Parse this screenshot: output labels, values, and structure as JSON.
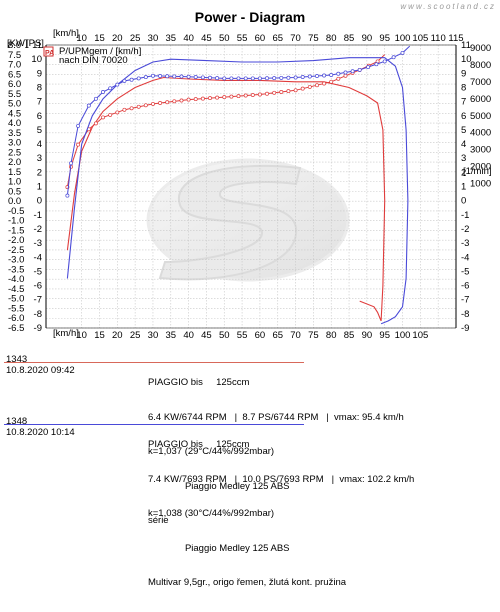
{
  "page": {
    "title": "Power - Diagram",
    "watermark": "www.scootland.cz"
  },
  "chart_data": {
    "type": "line",
    "title": "Power - Diagram",
    "left_axis": {
      "header": "[KW]",
      "header2": "[PS]",
      "kw_range": [
        -6.5,
        8.0
      ],
      "kw_ticks": [
        8.0,
        7.5,
        7.0,
        6.5,
        6.0,
        5.5,
        5.0,
        4.5,
        4.0,
        3.5,
        3.0,
        2.5,
        2.0,
        1.5,
        1.0,
        0.5,
        0.0,
        -0.5,
        -1.0,
        -1.5,
        -2.0,
        -2.5,
        -3.0,
        -3.5,
        -4.0,
        -4.5,
        -5.0,
        -5.5,
        -6.0,
        -6.5
      ],
      "ps_range": [
        -9,
        11
      ],
      "ps_ticks": [
        11,
        10,
        9,
        8,
        7,
        6,
        5,
        4,
        3,
        2,
        1,
        0,
        -1,
        -2,
        -3,
        -4,
        -5,
        -6,
        -7,
        -8,
        -9
      ]
    },
    "right_axis": {
      "ps_ticks": [
        11,
        10,
        9,
        8,
        7,
        6,
        5,
        4,
        3,
        2,
        1,
        0,
        -1,
        -2,
        -3,
        -4,
        -5,
        -6,
        -7,
        -8,
        -9
      ],
      "rpm_header": "[1/min]",
      "rpm_range": [
        0,
        9000
      ],
      "rpm_ticks": [
        9000,
        8000,
        7000,
        6000,
        5000,
        4000,
        3000,
        2000,
        1000
      ]
    },
    "x_axis": {
      "label": "[km/h]",
      "range": [
        0,
        115
      ],
      "ticks": [
        10,
        15,
        20,
        25,
        30,
        35,
        40,
        45,
        50,
        55,
        60,
        65,
        70,
        75,
        80,
        85,
        90,
        95,
        100,
        105,
        110,
        115
      ],
      "bottom_ticks": [
        10,
        15,
        20,
        25,
        30,
        35,
        40,
        45,
        50,
        55,
        60,
        65,
        70,
        75,
        80,
        85,
        90,
        95,
        100,
        105
      ]
    },
    "legend": {
      "box": "PA",
      "line1": "P/UPMgem / [km/h]",
      "line2": "nach DIN 70020"
    },
    "grid": true,
    "series": [
      {
        "name": "1343",
        "color": "#e03c3c",
        "power_ps": [
          [
            6,
            -3.5
          ],
          [
            8,
            0.5
          ],
          [
            10,
            3.5
          ],
          [
            13,
            5.2
          ],
          [
            16,
            6.3
          ],
          [
            20,
            7.2
          ],
          [
            25,
            8.0
          ],
          [
            30,
            8.5
          ],
          [
            33,
            8.7
          ],
          [
            40,
            8.6
          ],
          [
            50,
            8.5
          ],
          [
            60,
            8.5
          ],
          [
            70,
            8.4
          ],
          [
            78,
            8.4
          ],
          [
            85,
            8.0
          ],
          [
            90,
            7.4
          ],
          [
            93,
            6.9
          ],
          [
            94.5,
            5.0
          ],
          [
            95,
            0
          ],
          [
            94.5,
            -6
          ],
          [
            94,
            -8.5
          ],
          [
            93,
            -7.9
          ],
          [
            92,
            -7.5
          ],
          [
            88,
            -7.1
          ]
        ],
        "rpm": [
          [
            6,
            800
          ],
          [
            7,
            2000
          ],
          [
            9,
            3300
          ],
          [
            12,
            4200
          ],
          [
            16,
            4900
          ],
          [
            22,
            5350
          ],
          [
            30,
            5700
          ],
          [
            40,
            5950
          ],
          [
            50,
            6100
          ],
          [
            60,
            6250
          ],
          [
            70,
            6500
          ],
          [
            80,
            7000
          ],
          [
            88,
            7700
          ],
          [
            93,
            8200
          ],
          [
            95,
            8600
          ]
        ]
      },
      {
        "name": "1348",
        "color": "#4a4ad8",
        "power_ps": [
          [
            6,
            -5.5
          ],
          [
            8,
            -0.5
          ],
          [
            10,
            4.0
          ],
          [
            13,
            6.0
          ],
          [
            16,
            7.2
          ],
          [
            20,
            8.2
          ],
          [
            25,
            9.2
          ],
          [
            30,
            9.8
          ],
          [
            35,
            10.0
          ],
          [
            45,
            9.9
          ],
          [
            55,
            9.8
          ],
          [
            65,
            9.8
          ],
          [
            75,
            9.9
          ],
          [
            85,
            10.1
          ],
          [
            95,
            10.1
          ],
          [
            98,
            9.5
          ],
          [
            100,
            8.0
          ],
          [
            101,
            5.0
          ],
          [
            101.5,
            0
          ],
          [
            101,
            -5.5
          ],
          [
            100,
            -7.5
          ],
          [
            98,
            -8.2
          ],
          [
            96,
            -8.5
          ],
          [
            94,
            -8.7
          ]
        ],
        "rpm": [
          [
            6,
            300
          ],
          [
            7,
            2200
          ],
          [
            9,
            4400
          ],
          [
            12,
            5600
          ],
          [
            16,
            6400
          ],
          [
            22,
            7050
          ],
          [
            30,
            7350
          ],
          [
            40,
            7300
          ],
          [
            50,
            7200
          ],
          [
            60,
            7200
          ],
          [
            70,
            7250
          ],
          [
            80,
            7400
          ],
          [
            88,
            7700
          ],
          [
            95,
            8200
          ],
          [
            100,
            8700
          ],
          [
            102,
            9100
          ]
        ]
      }
    ]
  },
  "runs": [
    {
      "id": "1343",
      "date": "10.8.2020",
      "time": "09:42",
      "color": "#d8685a",
      "line1": "PIAGGIO bis     125ccm",
      "line2": "6.4 KW/6744 RPM   |  8.7 PS/6744 RPM   |  vmax: 95.4 km/h",
      "line3": "k=1,037 (29°C/44%/992mbar)",
      "line4": "              Piaggio Medley 125 ABS",
      "line5": "série"
    },
    {
      "id": "1348",
      "date": "10.8.2020",
      "time": "10:14",
      "color": "#4a4ad8",
      "line1": "PIAGGIO bis     125ccm",
      "line2": "7.4 KW/7693 RPM   |  10.0 PS/7693 RPM   |  vmax: 102.2 km/h",
      "line3": "k=1,038 (30°C/44%/992mbar)",
      "line4": "              Piaggio Medley 125 ABS",
      "line5": "Multivar 9,5gr., origo řemen, žlutá kont. pružina"
    }
  ]
}
